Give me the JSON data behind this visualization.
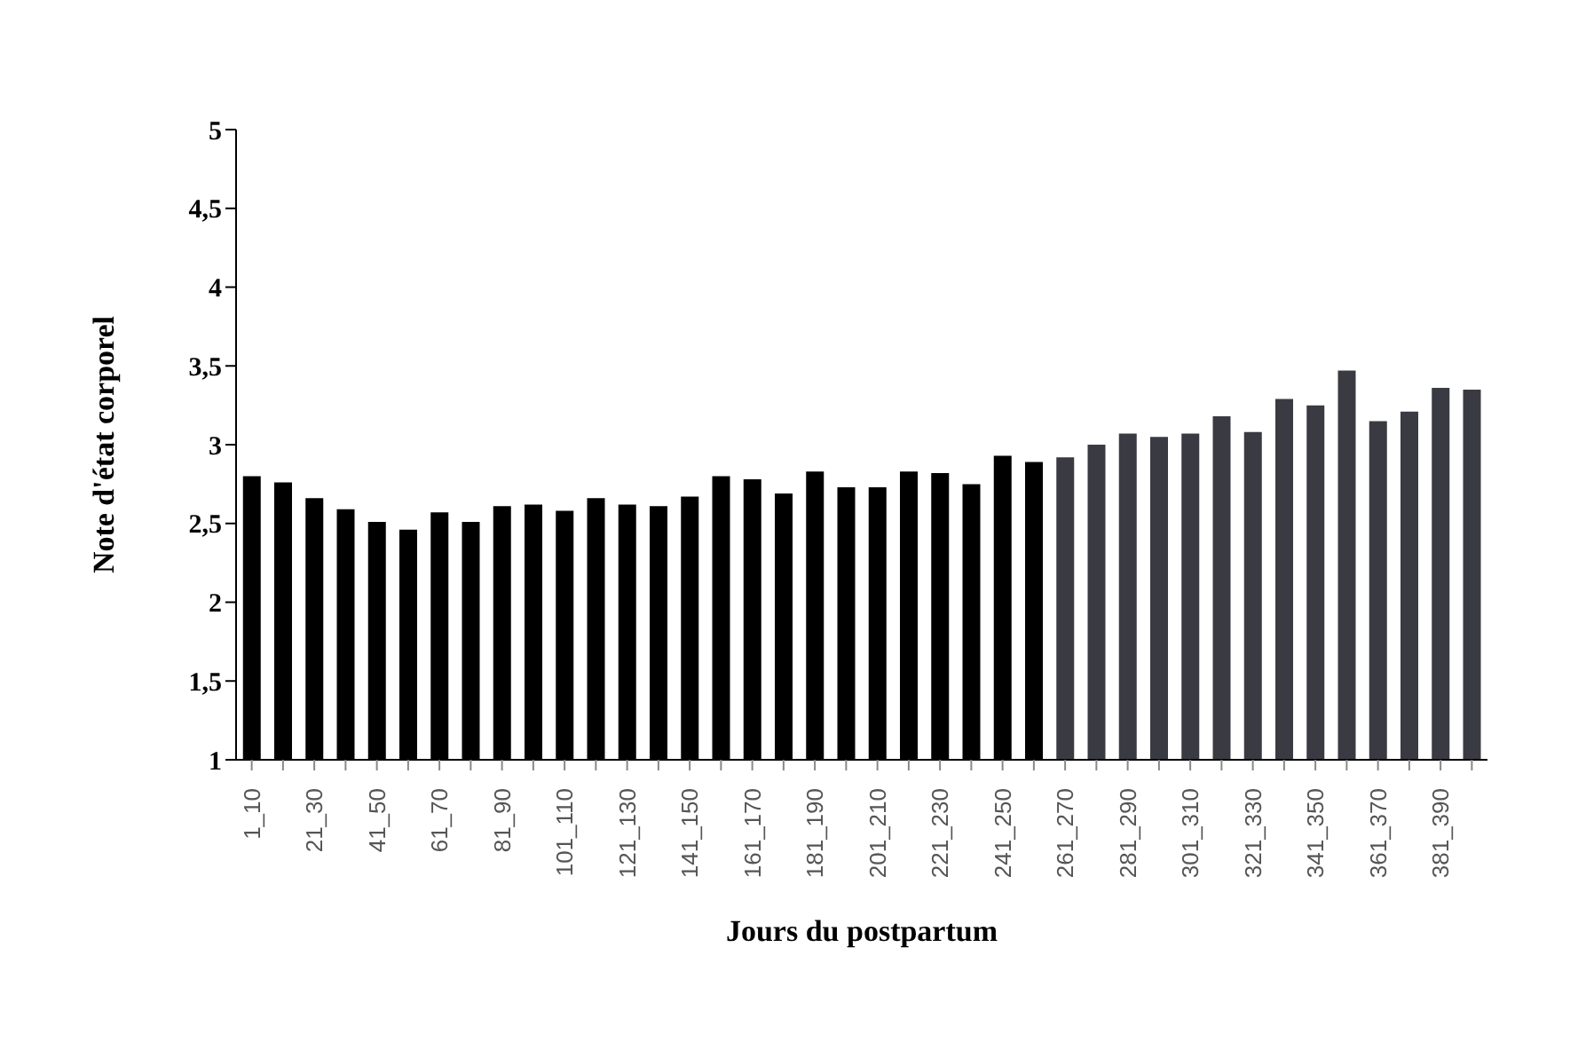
{
  "chart_data": {
    "type": "bar",
    "xlabel": "Jours du postpartum",
    "ylabel": "Note d'état corporel",
    "categories": [
      "1_10",
      null,
      "21_30",
      null,
      "41_50",
      null,
      "61_70",
      null,
      "81_90",
      null,
      "101_110",
      null,
      "121_130",
      null,
      "141_150",
      null,
      "161_170",
      null,
      "181_190",
      null,
      "201_210",
      null,
      "221_230",
      null,
      "241_250",
      null,
      "261_270",
      null,
      "281_290",
      null,
      "301_310",
      null,
      "321_330",
      null,
      "341_350",
      null,
      "361_370",
      null,
      "381_390",
      null
    ],
    "values": [
      2.8,
      2.76,
      2.66,
      2.59,
      2.51,
      2.46,
      2.57,
      2.51,
      2.61,
      2.62,
      2.58,
      2.66,
      2.62,
      2.61,
      2.67,
      2.8,
      2.78,
      2.69,
      2.83,
      2.73,
      2.73,
      2.83,
      2.82,
      2.75,
      2.93,
      2.89,
      2.92,
      3.0,
      3.07,
      3.05,
      3.07,
      3.18,
      3.08,
      3.29,
      3.25,
      3.47,
      3.15,
      3.21,
      3.36,
      3.35
    ],
    "colors": [
      "#000000",
      "#000000",
      "#000000",
      "#000000",
      "#000000",
      "#000000",
      "#000000",
      "#000000",
      "#000000",
      "#000000",
      "#000000",
      "#000000",
      "#000000",
      "#000000",
      "#000000",
      "#000000",
      "#000000",
      "#000000",
      "#000000",
      "#000000",
      "#000000",
      "#000000",
      "#000000",
      "#000000",
      "#000000",
      "#000000",
      "#3a3a42",
      "#3a3a42",
      "#3a3a42",
      "#3a3a42",
      "#3a3a42",
      "#3a3a42",
      "#3a3a42",
      "#3a3a42",
      "#3a3a42",
      "#3a3a42",
      "#3a3a42",
      "#3a3a42",
      "#3a3a42",
      "#3a3a42"
    ],
    "ylim": [
      1,
      5
    ],
    "yticks": [
      1,
      {
        "value": 1.5,
        "label": "1,5"
      },
      2,
      {
        "value": 2.5,
        "label": "2,5"
      },
      3,
      {
        "value": 3.5,
        "label": "3,5"
      },
      4,
      {
        "value": 4.5,
        "label": "4,5"
      },
      5
    ],
    "grid": false
  }
}
